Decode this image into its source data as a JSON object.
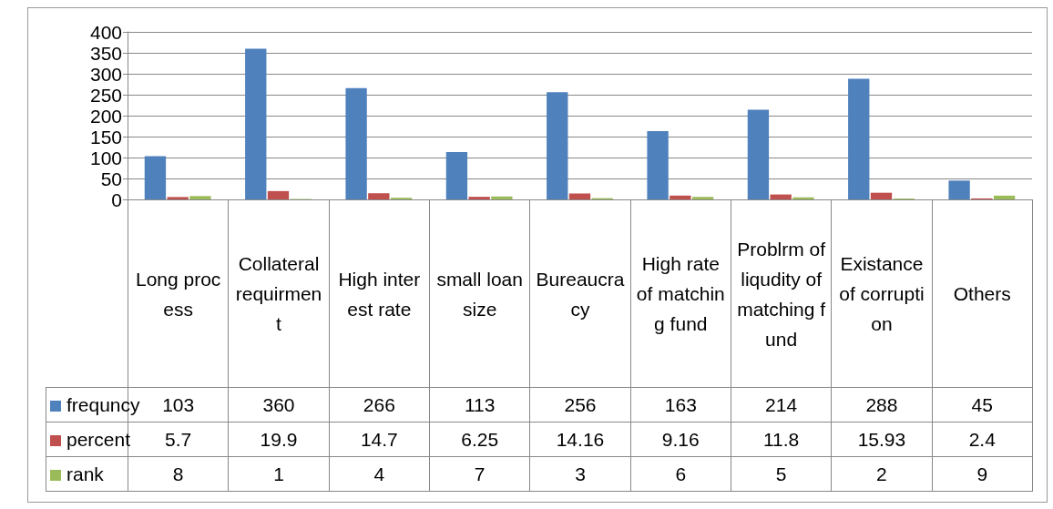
{
  "chart_data": {
    "type": "bar",
    "categories": [
      "Long process",
      "Collateral requirment",
      "High interest rate",
      "small loan size",
      "Bureaucracy",
      "High rate of matching fund",
      "Problrm of liqudity of matching fund",
      "Existance of corruption",
      "Others"
    ],
    "series": [
      {
        "name": "frequncy",
        "color": "#4f81bd",
        "values": [
          103,
          360,
          266,
          113,
          256,
          163,
          214,
          288,
          45
        ]
      },
      {
        "name": "percent",
        "color": "#c0504d",
        "values": [
          5.7,
          19.9,
          14.7,
          6.25,
          14.16,
          9.16,
          11.8,
          15.93,
          2.4
        ]
      },
      {
        "name": "rank",
        "color": "#9bbb59",
        "values": [
          8,
          1,
          4,
          7,
          3,
          6,
          5,
          2,
          9
        ]
      }
    ],
    "ylim": [
      0,
      400
    ],
    "yticks": [
      0,
      50,
      100,
      150,
      200,
      250,
      300,
      350,
      400
    ],
    "grid": "y",
    "legend": "bottom",
    "data_labels": true
  }
}
